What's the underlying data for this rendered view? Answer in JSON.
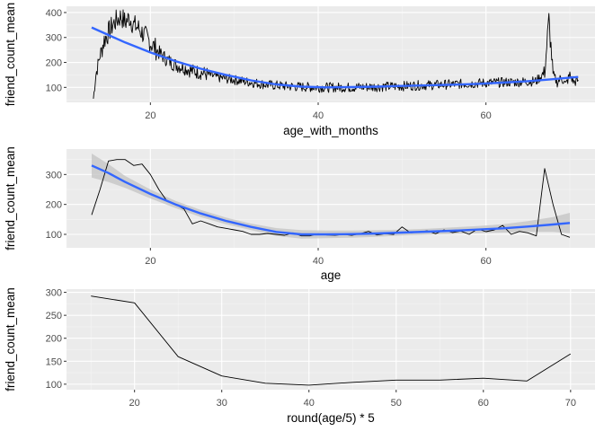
{
  "colors": {
    "panel": "#ebebeb",
    "grid_major": "#ffffff",
    "grid_minor": "#f5f5f5",
    "line": "#000000",
    "smooth": "#3366ff",
    "band": "#c3c3c3"
  },
  "chart_data": [
    {
      "type": "line",
      "title": "",
      "xlabel": "age_with_months",
      "ylabel": "friend_count_mean",
      "xlim": [
        10,
        73
      ],
      "ylim": [
        40,
        425
      ],
      "xticks": [
        20,
        40,
        60
      ],
      "yticks": [
        100,
        200,
        300,
        400
      ],
      "grid": true,
      "noisy_line": true,
      "series": [
        {
          "values_description": "",
          "x": [
            13.2,
            13.5,
            14,
            14.5,
            15,
            15.5,
            16,
            16.5,
            17,
            17.5,
            18,
            18.5,
            19,
            19.5,
            20,
            21,
            22,
            23,
            24,
            25,
            26,
            27,
            28,
            29,
            30,
            31,
            32,
            33,
            34,
            35,
            36,
            38,
            40,
            42,
            44,
            46,
            48,
            50,
            52,
            54,
            56,
            58,
            60,
            62,
            64,
            66,
            67,
            67.5,
            68,
            68.5,
            69,
            69.5,
            70,
            70.5,
            71
          ],
          "y": [
            55,
            150,
            230,
            290,
            320,
            350,
            370,
            385,
            360,
            380,
            350,
            340,
            320,
            300,
            280,
            240,
            210,
            190,
            180,
            165,
            160,
            150,
            140,
            135,
            130,
            125,
            120,
            115,
            110,
            108,
            105,
            102,
            100,
            100,
            100,
            102,
            103,
            105,
            108,
            110,
            112,
            115,
            118,
            120,
            122,
            125,
            160,
            370,
            150,
            120,
            140,
            110,
            150,
            120,
            130
          ]
        },
        {
          "type": "smooth",
          "x": [
            13,
            15,
            17,
            20,
            23,
            26,
            29,
            32,
            35,
            38,
            41,
            44,
            47,
            50,
            53,
            56,
            59,
            62,
            65,
            68,
            71
          ],
          "y": [
            340,
            310,
            280,
            240,
            205,
            175,
            150,
            128,
            112,
            103,
            100,
            101,
            103,
            106,
            108,
            111,
            114,
            119,
            125,
            133,
            142
          ]
        }
      ]
    },
    {
      "type": "line",
      "title": "",
      "xlabel": "age",
      "ylabel": "friend_count_mean",
      "xlim": [
        10,
        73
      ],
      "ylim": [
        55,
        385
      ],
      "xticks": [
        20,
        40,
        60
      ],
      "yticks": [
        100,
        200,
        300
      ],
      "grid": true,
      "series": [
        {
          "values_description": "",
          "x": [
            13,
            14,
            15,
            16,
            17,
            18,
            19,
            20,
            21,
            22,
            23,
            24,
            25,
            26,
            27,
            28,
            29,
            30,
            31,
            32,
            33,
            34,
            35,
            36,
            37,
            38,
            39,
            40,
            41,
            42,
            43,
            44,
            45,
            46,
            47,
            48,
            49,
            50,
            51,
            52,
            53,
            54,
            55,
            56,
            57,
            58,
            59,
            60,
            61,
            62,
            63,
            64,
            65,
            66,
            67,
            68,
            69,
            70
          ],
          "y": [
            165,
            250,
            345,
            350,
            350,
            330,
            335,
            300,
            250,
            210,
            200,
            185,
            135,
            145,
            135,
            125,
            120,
            115,
            110,
            100,
            100,
            103,
            100,
            97,
            105,
            95,
            95,
            102,
            98,
            97,
            100,
            97,
            102,
            110,
            98,
            102,
            100,
            125,
            105,
            107,
            112,
            102,
            115,
            106,
            111,
            100,
            118,
            109,
            115,
            130,
            100,
            110,
            105,
            95,
            320,
            200,
            100,
            90
          ]
        },
        {
          "type": "smooth",
          "x": [
            13,
            15,
            17,
            20,
            23,
            26,
            29,
            32,
            35,
            38,
            41,
            44,
            47,
            50,
            53,
            56,
            59,
            62,
            65,
            68,
            70
          ],
          "y": [
            330,
            305,
            275,
            235,
            200,
            170,
            145,
            125,
            108,
            100,
            100,
            101,
            103,
            106,
            109,
            112,
            116,
            120,
            126,
            133,
            138
          ]
        }
      ],
      "confidence_band": {
        "x": [
          13,
          15,
          17,
          20,
          23,
          26,
          29,
          32,
          35,
          38,
          41,
          44,
          47,
          50,
          53,
          56,
          59,
          62,
          65,
          68,
          70
        ],
        "lower": [
          290,
          275,
          255,
          220,
          188,
          158,
          134,
          114,
          95,
          86,
          87,
          89,
          92,
          96,
          99,
          101,
          104,
          106,
          108,
          108,
          104
        ],
        "upper": [
          370,
          335,
          295,
          250,
          212,
          182,
          156,
          136,
          121,
          114,
          113,
          113,
          114,
          116,
          119,
          123,
          128,
          134,
          144,
          158,
          172
        ]
      }
    },
    {
      "type": "line",
      "title": "",
      "xlabel": "round(age/5) * 5",
      "ylabel": "friend_count_mean",
      "xlim": [
        12.2,
        72.8
      ],
      "ylim": [
        88,
        307
      ],
      "xticks": [
        20,
        30,
        40,
        50,
        60,
        70
      ],
      "yticks": [
        100,
        150,
        200,
        250,
        300
      ],
      "grid": true,
      "series": [
        {
          "x": [
            15,
            20,
            25,
            30,
            35,
            40,
            45,
            50,
            55,
            60,
            65,
            70
          ],
          "y": [
            292,
            277,
            160,
            118,
            102,
            98,
            104,
            109,
            109,
            113,
            107,
            166
          ]
        }
      ]
    }
  ]
}
